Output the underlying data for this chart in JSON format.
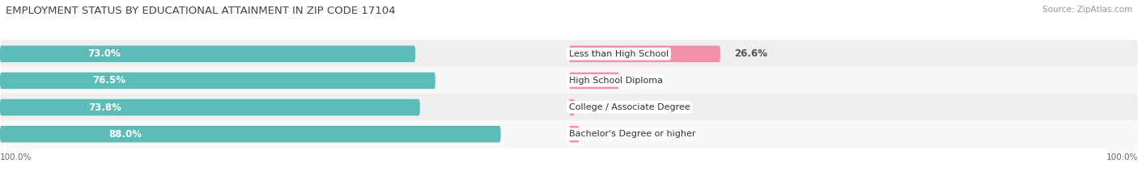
{
  "title": "EMPLOYMENT STATUS BY EDUCATIONAL ATTAINMENT IN ZIP CODE 17104",
  "source": "Source: ZipAtlas.com",
  "categories": [
    "Less than High School",
    "High School Diploma",
    "College / Associate Degree",
    "Bachelor's Degree or higher"
  ],
  "labor_force_pct": [
    73.0,
    76.5,
    73.8,
    88.0
  ],
  "unemployed_pct": [
    26.6,
    8.8,
    1.0,
    1.8
  ],
  "labor_force_color": "#5bbcb8",
  "unemployed_color": "#f490aa",
  "row_bg_even": "#efefef",
  "row_bg_odd": "#f8f8f8",
  "title_fontsize": 9.5,
  "source_fontsize": 7.5,
  "bar_label_fontsize": 8.5,
  "category_fontsize": 8,
  "legend_fontsize": 8,
  "axis_label_fontsize": 7.5,
  "max_value": 100.0,
  "left_axis_label": "100.0%",
  "right_axis_label": "100.0%"
}
